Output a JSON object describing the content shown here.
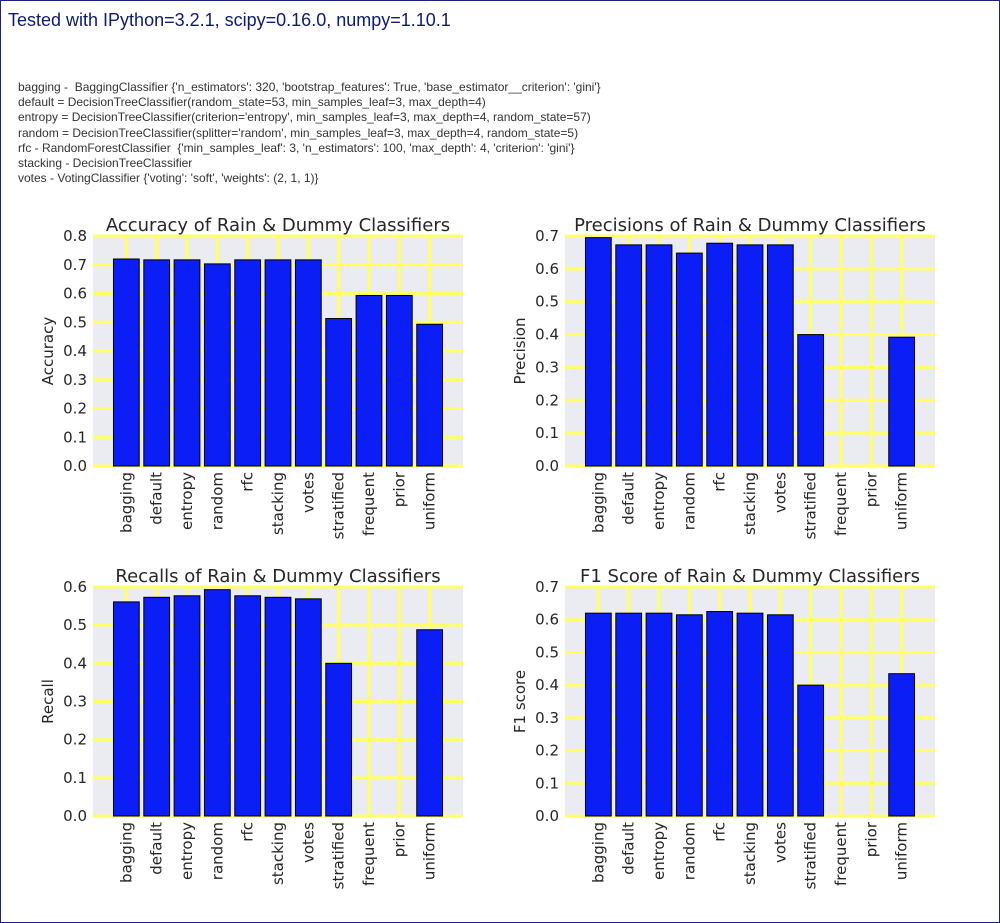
{
  "page": {
    "header": "Tested with IPython=3.2.1, scipy=0.16.0, numpy=1.10.1",
    "config_lines": [
      "bagging -  BaggingClassifier {'n_estimators': 320, 'bootstrap_features': True, 'base_estimator__criterion': 'gini'}",
      "default = DecisionTreeClassifier(random_state=53, min_samples_leaf=3, max_depth=4)",
      "entropy = DecisionTreeClassifier(criterion='entropy', min_samples_leaf=3, max_depth=4, random_state=57)",
      "random = DecisionTreeClassifier(splitter='random', min_samples_leaf=3, max_depth=4, random_state=5)",
      "rfc - RandomForestClassifier  {'min_samples_leaf': 3, 'n_estimators': 100, 'max_depth': 4, 'criterion': 'gini'}",
      "stacking - DecisionTreeClassifier",
      "votes - VotingClassifier {'voting': 'soft', 'weights': (2, 1, 1)}"
    ]
  },
  "style": {
    "bar_color": "#0a1ef5",
    "bar_edge": "#000000",
    "plot_background": "#ebebf2",
    "grid_color": "#ffff66",
    "text_color": "#262626"
  },
  "chart_data": [
    {
      "type": "bar",
      "title": "Accuracy of Rain & Dummy Classifiers",
      "xlabel": "",
      "ylabel": "Accuracy",
      "categories": [
        "bagging",
        "default",
        "entropy",
        "random",
        "rfc",
        "stacking",
        "votes",
        "stratified",
        "frequent",
        "prior",
        "uniform"
      ],
      "values": [
        0.72,
        0.717,
        0.717,
        0.703,
        0.717,
        0.717,
        0.717,
        0.513,
        0.593,
        0.593,
        0.493
      ],
      "ylim": [
        0,
        0.8
      ],
      "yticks": [
        "0.0",
        "0.1",
        "0.2",
        "0.3",
        "0.4",
        "0.5",
        "0.6",
        "0.7",
        "0.8"
      ],
      "grid": true
    },
    {
      "type": "bar",
      "title": "Precisions of Rain & Dummy Classifiers",
      "xlabel": "",
      "ylabel": "Precision",
      "categories": [
        "bagging",
        "default",
        "entropy",
        "random",
        "rfc",
        "stacking",
        "votes",
        "stratified",
        "frequent",
        "prior",
        "uniform"
      ],
      "values": [
        0.695,
        0.673,
        0.673,
        0.648,
        0.678,
        0.673,
        0.673,
        0.4,
        0,
        0,
        0.392
      ],
      "ylim": [
        0,
        0.7
      ],
      "yticks": [
        "0.0",
        "0.1",
        "0.2",
        "0.3",
        "0.4",
        "0.5",
        "0.6",
        "0.7"
      ],
      "grid": true
    },
    {
      "type": "bar",
      "title": "Recalls  of Rain & Dummy Classifiers",
      "xlabel": "",
      "ylabel": "Recall",
      "categories": [
        "bagging",
        "default",
        "entropy",
        "random",
        "rfc",
        "stacking",
        "votes",
        "stratified",
        "frequent",
        "prior",
        "uniform"
      ],
      "values": [
        0.561,
        0.573,
        0.577,
        0.593,
        0.577,
        0.573,
        0.569,
        0.4,
        0,
        0,
        0.488
      ],
      "ylim": [
        0,
        0.6
      ],
      "yticks": [
        "0.0",
        "0.1",
        "0.2",
        "0.3",
        "0.4",
        "0.5",
        "0.6"
      ],
      "grid": true
    },
    {
      "type": "bar",
      "title": "F1 Score of Rain & Dummy Classifiers",
      "xlabel": "",
      "ylabel": "F1 score",
      "categories": [
        "bagging",
        "default",
        "entropy",
        "random",
        "rfc",
        "stacking",
        "votes",
        "stratified",
        "frequent",
        "prior",
        "uniform"
      ],
      "values": [
        0.62,
        0.62,
        0.62,
        0.615,
        0.625,
        0.62,
        0.615,
        0.4,
        0,
        0,
        0.435
      ],
      "ylim": [
        0,
        0.7
      ],
      "yticks": [
        "0.0",
        "0.1",
        "0.2",
        "0.3",
        "0.4",
        "0.5",
        "0.6",
        "0.7"
      ],
      "grid": true
    }
  ]
}
